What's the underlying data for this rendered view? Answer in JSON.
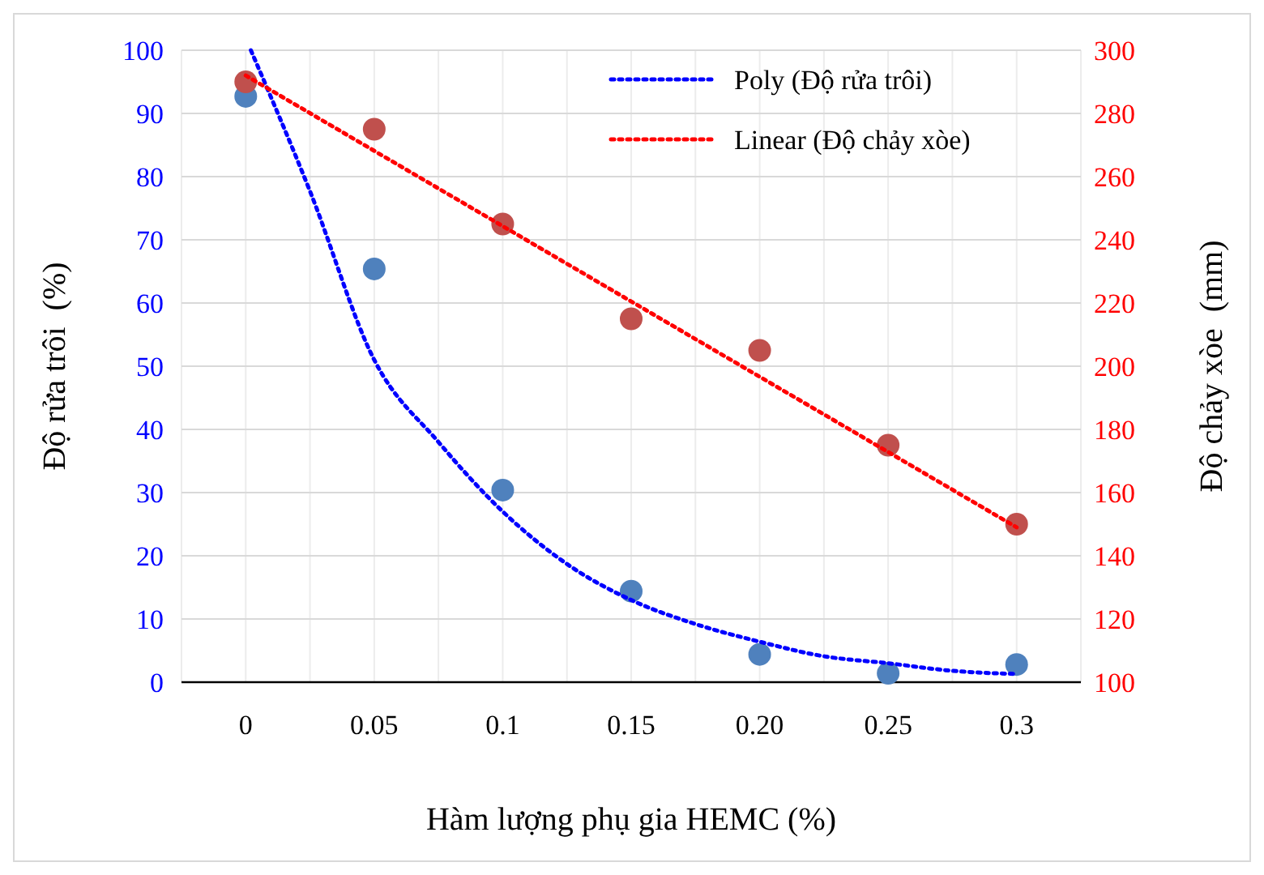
{
  "chart_data": {
    "type": "scatter",
    "xlabel": "Hàm lượng phụ gia HEMC (%)",
    "ylabel": "Độ rửa trôi  (%)",
    "y2label": "Độ chảy xòe  (mm)",
    "x": [
      0,
      0.05,
      0.1,
      0.15,
      0.2,
      0.25,
      0.3
    ],
    "xlim": [
      -0.025,
      0.325
    ],
    "xticks": [
      0,
      {
        "value": 0.025,
        "label": null
      },
      0.05,
      {
        "value": 0.075,
        "label": null
      },
      0.1,
      {
        "value": 0.125,
        "label": null
      },
      0.15,
      {
        "value": 0.175,
        "label": null
      },
      {
        "value": 0.2,
        "label": "0.20"
      },
      {
        "value": 0.225,
        "label": null
      },
      0.25,
      {
        "value": 0.275,
        "label": null
      },
      0.3
    ],
    "ylim": [
      0,
      100
    ],
    "yticks": [
      0,
      10,
      20,
      30,
      40,
      50,
      60,
      70,
      80,
      90,
      100
    ],
    "y2lim": [
      100,
      300
    ],
    "y2ticks": [
      100,
      120,
      140,
      160,
      180,
      200,
      220,
      240,
      260,
      280,
      300
    ],
    "grid": true,
    "legend": "top right",
    "marker": "circle",
    "series": [
      {
        "color": "#4f81bd",
        "values": [
          92.7,
          65.4,
          30.4,
          14.4,
          4.4,
          1.4,
          2.8
        ]
      },
      {
        "color": "#c0504d",
        "axis": "y2",
        "values": [
          290,
          275,
          245,
          215,
          205,
          175,
          150
        ]
      },
      {
        "type": "line",
        "name": "Poly (Độ rửa trôi)",
        "color": "#0000ff",
        "line_style": "dotted",
        "marker": "none",
        "x": [
          0.002,
          0.025,
          0.05,
          0.075,
          0.1,
          0.125,
          0.15,
          0.175,
          0.2,
          0.225,
          0.25,
          0.275,
          0.3
        ],
        "values": [
          100,
          77.7,
          51,
          38,
          27,
          18.7,
          13,
          9.2,
          6.4,
          4.1,
          3,
          1.8,
          1.3
        ]
      },
      {
        "type": "line",
        "name": "Linear (Độ chảy xòe)",
        "color": "#ff0000",
        "line_style": "dotted",
        "marker": "none",
        "axis": "y2",
        "x": [
          0,
          0.3
        ],
        "values": [
          292,
          149
        ]
      }
    ]
  }
}
